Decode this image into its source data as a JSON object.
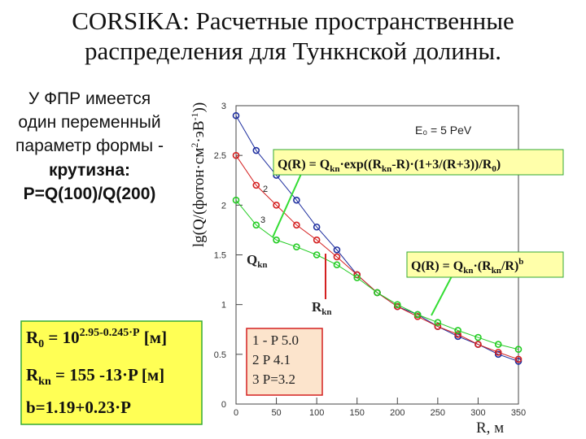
{
  "slide": {
    "title": [
      "CORSIKA:  Расчетные пространственные",
      "распределения для Тункнской долины."
    ],
    "left_text": [
      "У ФПР имеется",
      "один переменный",
      "параметр формы -"
    ],
    "left_bold": [
      "крутизна:",
      "P=Q(100)/Q(200)"
    ],
    "formulas": [
      [
        "R",
        "0",
        " = 10",
        "2.95-0.245·P",
        " [м]"
      ],
      [
        "R",
        "kn",
        " = 155 -13·P [м]"
      ],
      [
        "b=1.19+0.23·P"
      ]
    ]
  },
  "chart_data": {
    "type": "scatter",
    "x_label": "R, м",
    "y_label": [
      "lg(Q/(фотон·см",
      "2",
      "·эВ",
      "-1",
      "))"
    ],
    "annotations": {
      "energy": "E₀ = 5 PeV",
      "formula_exp": [
        "Q(R) = Q",
        "kn",
        "·exp((R",
        "kn",
        "-R)·(1+3/(R+3))/R",
        "0",
        ")"
      ],
      "formula_pow": [
        "Q(R) = Q",
        "kn",
        "·(R",
        "kn",
        "/R)",
        "b"
      ],
      "q_kn": [
        "Q",
        "kn"
      ],
      "r_kn": [
        "R",
        "kn"
      ],
      "curve_2": "2",
      "curve_3": "3"
    },
    "x": [
      0,
      25,
      50,
      75,
      100,
      125,
      150,
      175,
      200,
      225,
      250,
      275,
      300,
      325,
      350
    ],
    "series": [
      {
        "name": "1 - P  5.0",
        "color": "#1f2f9f",
        "values": [
          2.9,
          2.55,
          2.3,
          2.05,
          1.78,
          1.55,
          1.3,
          1.12,
          0.98,
          0.9,
          0.78,
          0.68,
          0.6,
          0.5,
          0.43
        ]
      },
      {
        "name": "2   P  4.1",
        "color": "#d42020",
        "values": [
          2.5,
          2.2,
          2.0,
          1.8,
          1.65,
          1.48,
          1.3,
          1.12,
          0.98,
          0.88,
          0.78,
          0.7,
          0.6,
          0.52,
          0.45
        ]
      },
      {
        "name": "3   P=3.2",
        "color": "#22cc22",
        "values": [
          2.05,
          1.8,
          1.65,
          1.58,
          1.5,
          1.4,
          1.27,
          1.12,
          1.0,
          0.9,
          0.82,
          0.74,
          0.67,
          0.6,
          0.55
        ]
      }
    ],
    "xlim": [
      0,
      350
    ],
    "ylim": [
      0,
      3
    ],
    "xticks": [
      0,
      50,
      100,
      150,
      200,
      250,
      300,
      350
    ],
    "yticks": [
      0,
      0.5,
      1,
      1.5,
      2,
      2.5,
      3
    ]
  }
}
